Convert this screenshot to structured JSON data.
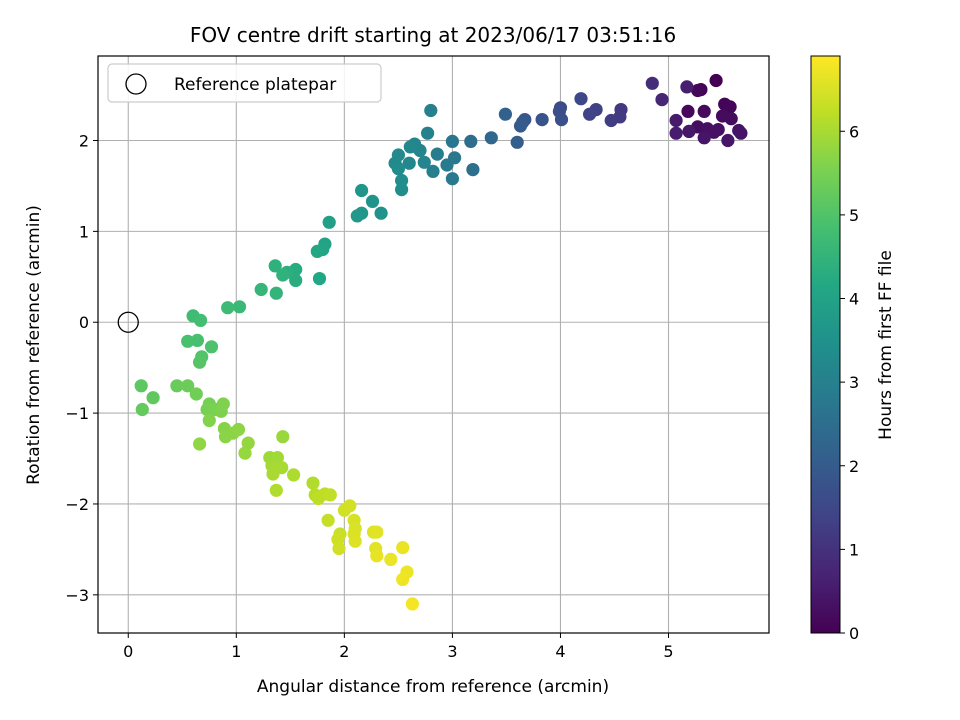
{
  "chart_data": {
    "type": "scatter",
    "title": "FOV centre drift starting at 2023/06/17 03:51:16",
    "xlabel": "Angular distance from reference (arcmin)",
    "ylabel": "Rotation from reference (arcmin)",
    "xlim": [
      -0.28,
      5.93
    ],
    "ylim": [
      -3.42,
      2.93
    ],
    "xticks": [
      0,
      1,
      2,
      3,
      4,
      5
    ],
    "yticks": [
      -3,
      -2,
      -1,
      0,
      1,
      2
    ],
    "grid": true,
    "legend": {
      "placement": "top-left",
      "entries": [
        "Reference platepar"
      ]
    },
    "reference_point": {
      "label": "Reference platepar",
      "x": 0,
      "y": 0
    },
    "colorbar": {
      "label": "Hours from first FF file",
      "colormap": "viridis",
      "range": [
        0,
        6.9
      ],
      "ticks": [
        0,
        1,
        2,
        3,
        4,
        5,
        6
      ]
    },
    "series": [
      {
        "points": [
          {
            "x": 5.44,
            "y": 2.66,
            "c": 0.0
          },
          {
            "x": 5.3,
            "y": 2.56,
            "c": 0.05
          },
          {
            "x": 5.52,
            "y": 2.4,
            "c": 0.08
          },
          {
            "x": 5.57,
            "y": 2.37,
            "c": 0.1
          },
          {
            "x": 5.27,
            "y": 2.55,
            "c": 0.12
          },
          {
            "x": 5.18,
            "y": 2.32,
            "c": 0.15
          },
          {
            "x": 5.33,
            "y": 2.32,
            "c": 0.18
          },
          {
            "x": 5.5,
            "y": 2.27,
            "c": 0.2
          },
          {
            "x": 5.58,
            "y": 2.24,
            "c": 0.22
          },
          {
            "x": 5.27,
            "y": 2.15,
            "c": 0.25
          },
          {
            "x": 5.36,
            "y": 2.13,
            "c": 0.28
          },
          {
            "x": 5.46,
            "y": 2.12,
            "c": 0.3
          },
          {
            "x": 5.42,
            "y": 2.09,
            "c": 0.32
          },
          {
            "x": 5.65,
            "y": 2.11,
            "c": 0.35
          },
          {
            "x": 5.67,
            "y": 2.08,
            "c": 0.38
          },
          {
            "x": 5.33,
            "y": 2.03,
            "c": 0.4
          },
          {
            "x": 5.55,
            "y": 2.0,
            "c": 0.42
          },
          {
            "x": 5.19,
            "y": 2.1,
            "c": 0.45
          },
          {
            "x": 5.07,
            "y": 2.22,
            "c": 0.5
          },
          {
            "x": 5.07,
            "y": 2.08,
            "c": 0.55
          },
          {
            "x": 5.17,
            "y": 2.59,
            "c": 0.6
          },
          {
            "x": 4.94,
            "y": 2.45,
            "c": 0.75
          },
          {
            "x": 4.85,
            "y": 2.63,
            "c": 0.9
          },
          {
            "x": 4.56,
            "y": 2.34,
            "c": 1.15
          },
          {
            "x": 4.55,
            "y": 2.26,
            "c": 1.2
          },
          {
            "x": 4.47,
            "y": 2.22,
            "c": 1.25
          },
          {
            "x": 4.33,
            "y": 2.34,
            "c": 1.35
          },
          {
            "x": 4.27,
            "y": 2.29,
            "c": 1.4
          },
          {
            "x": 4.19,
            "y": 2.46,
            "c": 1.5
          },
          {
            "x": 4.0,
            "y": 2.36,
            "c": 1.6
          },
          {
            "x": 3.99,
            "y": 2.32,
            "c": 1.65
          },
          {
            "x": 4.01,
            "y": 2.23,
            "c": 1.7
          },
          {
            "x": 3.83,
            "y": 2.23,
            "c": 1.8
          },
          {
            "x": 3.67,
            "y": 2.23,
            "c": 1.9
          },
          {
            "x": 3.65,
            "y": 2.2,
            "c": 1.95
          },
          {
            "x": 3.63,
            "y": 2.16,
            "c": 2.0
          },
          {
            "x": 3.6,
            "y": 1.98,
            "c": 2.1
          },
          {
            "x": 3.49,
            "y": 2.29,
            "c": 2.15
          },
          {
            "x": 3.36,
            "y": 2.03,
            "c": 2.3
          },
          {
            "x": 3.17,
            "y": 1.99,
            "c": 2.5
          },
          {
            "x": 3.19,
            "y": 1.68,
            "c": 2.55
          },
          {
            "x": 3.0,
            "y": 1.99,
            "c": 2.7
          },
          {
            "x": 3.02,
            "y": 1.81,
            "c": 2.75
          },
          {
            "x": 3.0,
            "y": 1.58,
            "c": 2.8
          },
          {
            "x": 2.95,
            "y": 1.73,
            "c": 2.85
          },
          {
            "x": 2.86,
            "y": 1.85,
            "c": 2.9
          },
          {
            "x": 2.82,
            "y": 1.66,
            "c": 2.95
          },
          {
            "x": 2.8,
            "y": 2.33,
            "c": 3.0
          },
          {
            "x": 2.77,
            "y": 2.08,
            "c": 3.05
          },
          {
            "x": 2.74,
            "y": 1.76,
            "c": 3.1
          },
          {
            "x": 2.7,
            "y": 1.89,
            "c": 3.12
          },
          {
            "x": 2.65,
            "y": 1.96,
            "c": 3.15
          },
          {
            "x": 2.61,
            "y": 1.93,
            "c": 3.18
          },
          {
            "x": 2.6,
            "y": 1.75,
            "c": 3.2
          },
          {
            "x": 2.5,
            "y": 1.84,
            "c": 3.25
          },
          {
            "x": 2.47,
            "y": 1.75,
            "c": 3.28
          },
          {
            "x": 2.5,
            "y": 1.69,
            "c": 3.3
          },
          {
            "x": 2.53,
            "y": 1.56,
            "c": 3.35
          },
          {
            "x": 2.53,
            "y": 1.46,
            "c": 3.4
          },
          {
            "x": 2.34,
            "y": 1.2,
            "c": 3.5
          },
          {
            "x": 2.26,
            "y": 1.33,
            "c": 3.55
          },
          {
            "x": 2.16,
            "y": 1.45,
            "c": 3.6
          },
          {
            "x": 2.16,
            "y": 1.2,
            "c": 3.65
          },
          {
            "x": 2.12,
            "y": 1.17,
            "c": 3.7
          },
          {
            "x": 1.86,
            "y": 1.1,
            "c": 3.9
          },
          {
            "x": 1.82,
            "y": 0.86,
            "c": 4.0
          },
          {
            "x": 1.8,
            "y": 0.8,
            "c": 4.05
          },
          {
            "x": 1.75,
            "y": 0.78,
            "c": 4.1
          },
          {
            "x": 1.77,
            "y": 0.48,
            "c": 4.15
          },
          {
            "x": 1.55,
            "y": 0.58,
            "c": 4.25
          },
          {
            "x": 1.55,
            "y": 0.46,
            "c": 4.3
          },
          {
            "x": 1.47,
            "y": 0.55,
            "c": 4.35
          },
          {
            "x": 1.36,
            "y": 0.62,
            "c": 4.4
          },
          {
            "x": 1.43,
            "y": 0.52,
            "c": 4.45
          },
          {
            "x": 1.37,
            "y": 0.32,
            "c": 4.5
          },
          {
            "x": 1.23,
            "y": 0.36,
            "c": 4.55
          },
          {
            "x": 1.03,
            "y": 0.17,
            "c": 4.65
          },
          {
            "x": 0.92,
            "y": 0.16,
            "c": 4.7
          },
          {
            "x": 0.6,
            "y": 0.07,
            "c": 4.75
          },
          {
            "x": 0.67,
            "y": 0.02,
            "c": 4.8
          },
          {
            "x": 0.64,
            "y": -0.2,
            "c": 4.85
          },
          {
            "x": 0.55,
            "y": -0.21,
            "c": 4.9
          },
          {
            "x": 0.77,
            "y": -0.27,
            "c": 4.95
          },
          {
            "x": 0.68,
            "y": -0.38,
            "c": 5.0
          },
          {
            "x": 0.66,
            "y": -0.44,
            "c": 5.05
          },
          {
            "x": 0.12,
            "y": -0.7,
            "c": 5.15
          },
          {
            "x": 0.23,
            "y": -0.83,
            "c": 5.2
          },
          {
            "x": 0.13,
            "y": -0.96,
            "c": 5.25
          },
          {
            "x": 0.45,
            "y": -0.7,
            "c": 5.3
          },
          {
            "x": 0.55,
            "y": -0.7,
            "c": 5.35
          },
          {
            "x": 0.63,
            "y": -0.79,
            "c": 5.4
          },
          {
            "x": 0.75,
            "y": -0.9,
            "c": 5.45
          },
          {
            "x": 0.73,
            "y": -0.96,
            "c": 5.5
          },
          {
            "x": 0.81,
            "y": -0.96,
            "c": 5.52
          },
          {
            "x": 0.86,
            "y": -0.98,
            "c": 5.55
          },
          {
            "x": 0.88,
            "y": -0.9,
            "c": 5.58
          },
          {
            "x": 0.75,
            "y": -1.08,
            "c": 5.6
          },
          {
            "x": 0.89,
            "y": -1.17,
            "c": 5.65
          },
          {
            "x": 0.9,
            "y": -1.26,
            "c": 5.68
          },
          {
            "x": 0.97,
            "y": -1.22,
            "c": 5.7
          },
          {
            "x": 1.02,
            "y": -1.18,
            "c": 5.72
          },
          {
            "x": 0.66,
            "y": -1.34,
            "c": 5.75
          },
          {
            "x": 1.11,
            "y": -1.33,
            "c": 5.8
          },
          {
            "x": 1.08,
            "y": -1.44,
            "c": 5.82
          },
          {
            "x": 1.43,
            "y": -1.26,
            "c": 5.85
          },
          {
            "x": 1.31,
            "y": -1.49,
            "c": 5.9
          },
          {
            "x": 1.38,
            "y": -1.49,
            "c": 5.92
          },
          {
            "x": 1.33,
            "y": -1.58,
            "c": 5.95
          },
          {
            "x": 1.36,
            "y": -1.61,
            "c": 5.97
          },
          {
            "x": 1.42,
            "y": -1.6,
            "c": 6.0
          },
          {
            "x": 1.34,
            "y": -1.67,
            "c": 6.02
          },
          {
            "x": 1.53,
            "y": -1.68,
            "c": 6.05
          },
          {
            "x": 1.37,
            "y": -1.85,
            "c": 6.08
          },
          {
            "x": 1.71,
            "y": -1.77,
            "c": 6.1
          },
          {
            "x": 1.73,
            "y": -1.9,
            "c": 6.15
          },
          {
            "x": 1.76,
            "y": -1.94,
            "c": 6.2
          },
          {
            "x": 1.82,
            "y": -1.89,
            "c": 6.22
          },
          {
            "x": 1.87,
            "y": -1.9,
            "c": 6.25
          },
          {
            "x": 1.85,
            "y": -2.18,
            "c": 6.3
          },
          {
            "x": 1.96,
            "y": -2.33,
            "c": 6.35
          },
          {
            "x": 1.94,
            "y": -2.39,
            "c": 6.38
          },
          {
            "x": 1.95,
            "y": -2.49,
            "c": 6.4
          },
          {
            "x": 2.0,
            "y": -2.07,
            "c": 6.42
          },
          {
            "x": 2.05,
            "y": -2.02,
            "c": 6.45
          },
          {
            "x": 2.09,
            "y": -2.18,
            "c": 6.48
          },
          {
            "x": 2.1,
            "y": -2.27,
            "c": 6.5
          },
          {
            "x": 2.09,
            "y": -2.33,
            "c": 6.52
          },
          {
            "x": 2.1,
            "y": -2.41,
            "c": 6.55
          },
          {
            "x": 2.27,
            "y": -2.31,
            "c": 6.58
          },
          {
            "x": 2.3,
            "y": -2.31,
            "c": 6.6
          },
          {
            "x": 2.29,
            "y": -2.49,
            "c": 6.62
          },
          {
            "x": 2.3,
            "y": -2.57,
            "c": 6.65
          },
          {
            "x": 2.43,
            "y": -2.61,
            "c": 6.68
          },
          {
            "x": 2.54,
            "y": -2.48,
            "c": 6.7
          },
          {
            "x": 2.58,
            "y": -2.75,
            "c": 6.72
          },
          {
            "x": 2.54,
            "y": -2.83,
            "c": 6.75
          },
          {
            "x": 2.63,
            "y": -3.1,
            "c": 6.8
          }
        ]
      }
    ]
  }
}
